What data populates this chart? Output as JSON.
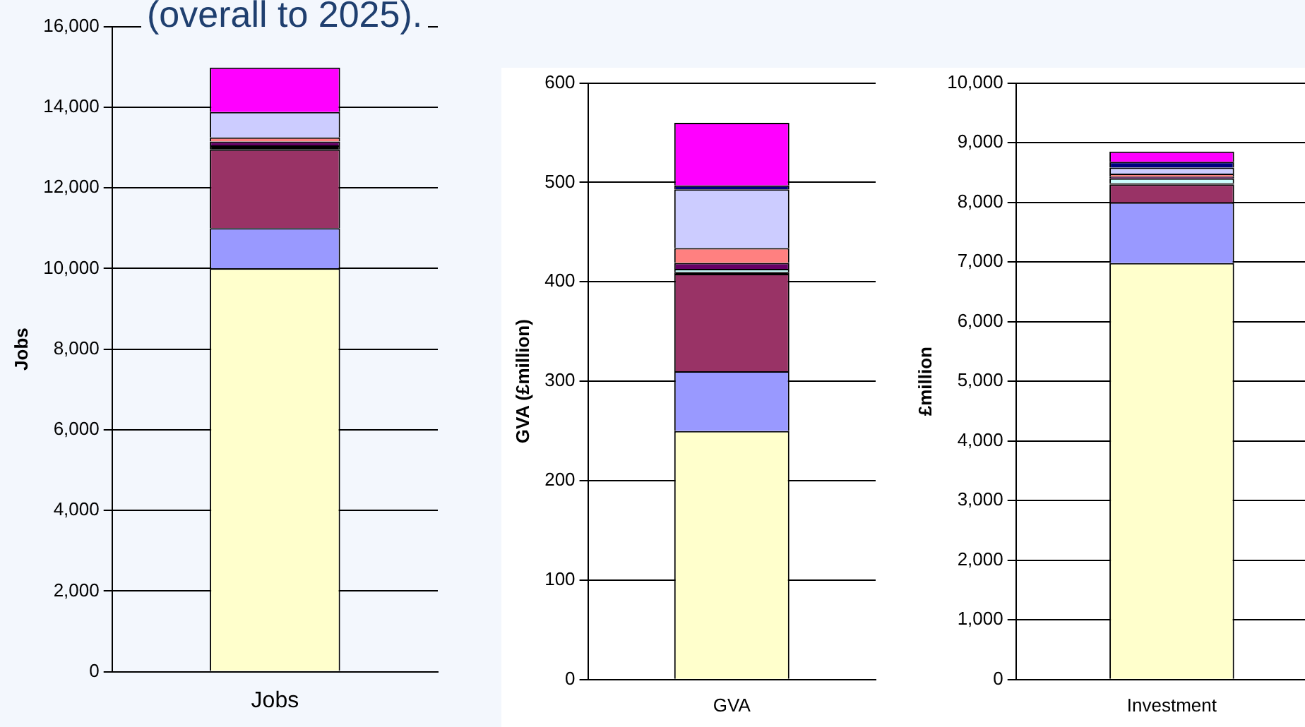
{
  "chart_data": [
    {
      "type": "bar",
      "title": "(overall to 2025).",
      "ylabel": "Jobs",
      "categories": [
        "Jobs"
      ],
      "stacked": true,
      "grid": "y",
      "legend": false,
      "ylim": [
        0,
        16000
      ],
      "yticks": [
        {
          "value": 0,
          "label": "0"
        },
        {
          "value": 2000,
          "label": "2,000"
        },
        {
          "value": 4000,
          "label": "4,000"
        },
        {
          "value": 6000,
          "label": "6,000"
        },
        {
          "value": 8000,
          "label": "8,000"
        },
        {
          "value": 10000,
          "label": "10,000"
        },
        {
          "value": 12000,
          "label": "12,000"
        },
        {
          "value": 14000,
          "label": "14,000"
        },
        {
          "value": 16000,
          "label": "16,000"
        }
      ],
      "series": [
        {
          "color": "#ffffcc",
          "values": [
            10000
          ]
        },
        {
          "color": "#9999ff",
          "values": [
            1000
          ]
        },
        {
          "color": "#993366",
          "values": [
            1950
          ]
        },
        {
          "color": "#000000",
          "values": [
            100
          ]
        },
        {
          "color": "#ccffff",
          "values": [
            null
          ]
        },
        {
          "color": "#660066",
          "values": [
            100
          ]
        },
        {
          "color": "#ff8080",
          "values": [
            100
          ]
        },
        {
          "color": "#ccccff",
          "values": [
            630
          ]
        },
        {
          "color": "#000080",
          "values": [
            null
          ]
        },
        {
          "color": "#ff00ff",
          "values": [
            1100
          ]
        }
      ]
    },
    {
      "type": "bar",
      "ylabel": "GVA (£million)",
      "categories": [
        "GVA"
      ],
      "stacked": true,
      "grid": "y",
      "legend": false,
      "ylim": [
        0,
        600
      ],
      "yticks": [
        0,
        100,
        200,
        300,
        400,
        500,
        600
      ],
      "series": [
        {
          "color": "#ffffcc",
          "values": [
            250
          ]
        },
        {
          "color": "#9999ff",
          "values": [
            60
          ]
        },
        {
          "color": "#993366",
          "values": [
            98
          ]
        },
        {
          "color": "#000000",
          "values": [
            2
          ]
        },
        {
          "color": "#ccffff",
          "values": [
            3
          ]
        },
        {
          "color": "#660066",
          "values": [
            6
          ]
        },
        {
          "color": "#ff8080",
          "values": [
            15
          ]
        },
        {
          "color": "#ccccff",
          "values": [
            59
          ]
        },
        {
          "color": "#000080",
          "values": [
            4
          ]
        },
        {
          "color": "#ff00ff",
          "values": [
            63
          ]
        }
      ]
    },
    {
      "type": "bar",
      "ylabel": "£million",
      "categories": [
        "Investment"
      ],
      "stacked": true,
      "grid": "y",
      "legend": false,
      "ylim": [
        0,
        10000
      ],
      "yticks": [
        {
          "value": 0,
          "label": "0"
        },
        {
          "value": 1000,
          "label": "1,000"
        },
        {
          "value": 2000,
          "label": "2,000"
        },
        {
          "value": 3000,
          "label": "3,000"
        },
        {
          "value": 4000,
          "label": "4,000"
        },
        {
          "value": 5000,
          "label": "5,000"
        },
        {
          "value": 6000,
          "label": "6,000"
        },
        {
          "value": 7000,
          "label": "7,000"
        },
        {
          "value": 8000,
          "label": "8,000"
        },
        {
          "value": 9000,
          "label": "9,000"
        },
        {
          "value": 10000,
          "label": "10,000"
        }
      ],
      "series": [
        {
          "color": "#ffffcc",
          "values": [
            6980
          ]
        },
        {
          "color": "#9999ff",
          "values": [
            1020
          ]
        },
        {
          "color": "#993366",
          "values": [
            300
          ]
        },
        {
          "color": "#000000",
          "values": [
            20
          ]
        },
        {
          "color": "#ccffff",
          "values": [
            80
          ]
        },
        {
          "color": "#660066",
          "values": [
            30
          ]
        },
        {
          "color": "#ff8080",
          "values": [
            50
          ]
        },
        {
          "color": "#ccccff",
          "values": [
            100
          ]
        },
        {
          "color": "#000080",
          "values": [
            100
          ]
        },
        {
          "color": "#ff00ff",
          "values": [
            170
          ]
        }
      ]
    }
  ]
}
